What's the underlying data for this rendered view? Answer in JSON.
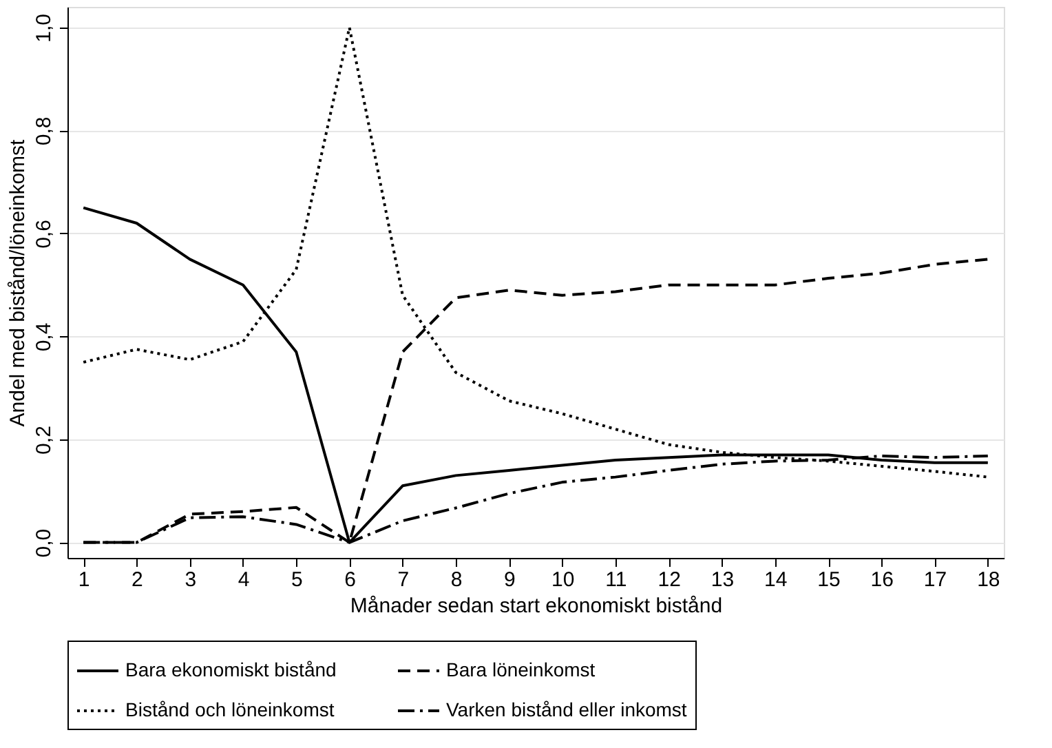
{
  "chart_data": {
    "type": "line",
    "xlabel": "Månader sedan start ekonomiskt bistånd",
    "ylabel": "Andel med bistånd/löneinkomst",
    "x": [
      1,
      2,
      3,
      4,
      5,
      6,
      7,
      8,
      9,
      10,
      11,
      12,
      13,
      14,
      15,
      16,
      17,
      18
    ],
    "xlim": [
      0.7,
      18.3
    ],
    "xticks": [
      1,
      2,
      3,
      4,
      5,
      6,
      7,
      8,
      9,
      10,
      11,
      12,
      13,
      14,
      15,
      16,
      17,
      18
    ],
    "ylim": [
      -0.03,
      1.04
    ],
    "yticks": [
      {
        "value": 0,
        "label": "0,0"
      },
      {
        "value": 0.2,
        "label": "0,2"
      },
      {
        "value": 0.4,
        "label": "0,4"
      },
      {
        "value": 0.6,
        "label": "0,6"
      },
      {
        "value": 0.8,
        "label": "0,8"
      },
      {
        "value": 1.0,
        "label": "1,0"
      }
    ],
    "grid": "y",
    "legend": "bottom",
    "marker": "none",
    "series": [
      {
        "name": "Bara ekonomiskt bistånd",
        "color": "#000000",
        "line_style": "solid",
        "values": [
          0.65,
          0.62,
          0.55,
          0.5,
          0.37,
          0,
          0.11,
          0.13,
          0.14,
          0.15,
          0.16,
          0.165,
          0.17,
          0.17,
          0.17,
          0.16,
          0.155,
          0.155
        ]
      },
      {
        "name": "Bara löneinkomst",
        "color": "#000000",
        "line_style": "dashed",
        "values": [
          0,
          0,
          0.055,
          0.06,
          0.068,
          0,
          0.37,
          0.475,
          0.49,
          0.48,
          0.487,
          0.5,
          0.5,
          0.5,
          0.513,
          0.523,
          0.54,
          0.55
        ]
      },
      {
        "name": "Bistånd och löneinkomst",
        "color": "#000000",
        "line_style": "dotted",
        "values": [
          0.35,
          0.375,
          0.355,
          0.39,
          0.53,
          1.0,
          0.48,
          0.33,
          0.275,
          0.25,
          0.22,
          0.19,
          0.175,
          0.165,
          0.158,
          0.148,
          0.138,
          0.127
        ]
      },
      {
        "name": "Varken bistånd eller inkomst",
        "color": "#000000",
        "line_style": "dashdot",
        "values": [
          0,
          0,
          0.048,
          0.05,
          0.035,
          0,
          0.042,
          0.067,
          0.095,
          0.117,
          0.127,
          0.14,
          0.152,
          0.158,
          0.16,
          0.168,
          0.165,
          0.168
        ]
      }
    ]
  }
}
